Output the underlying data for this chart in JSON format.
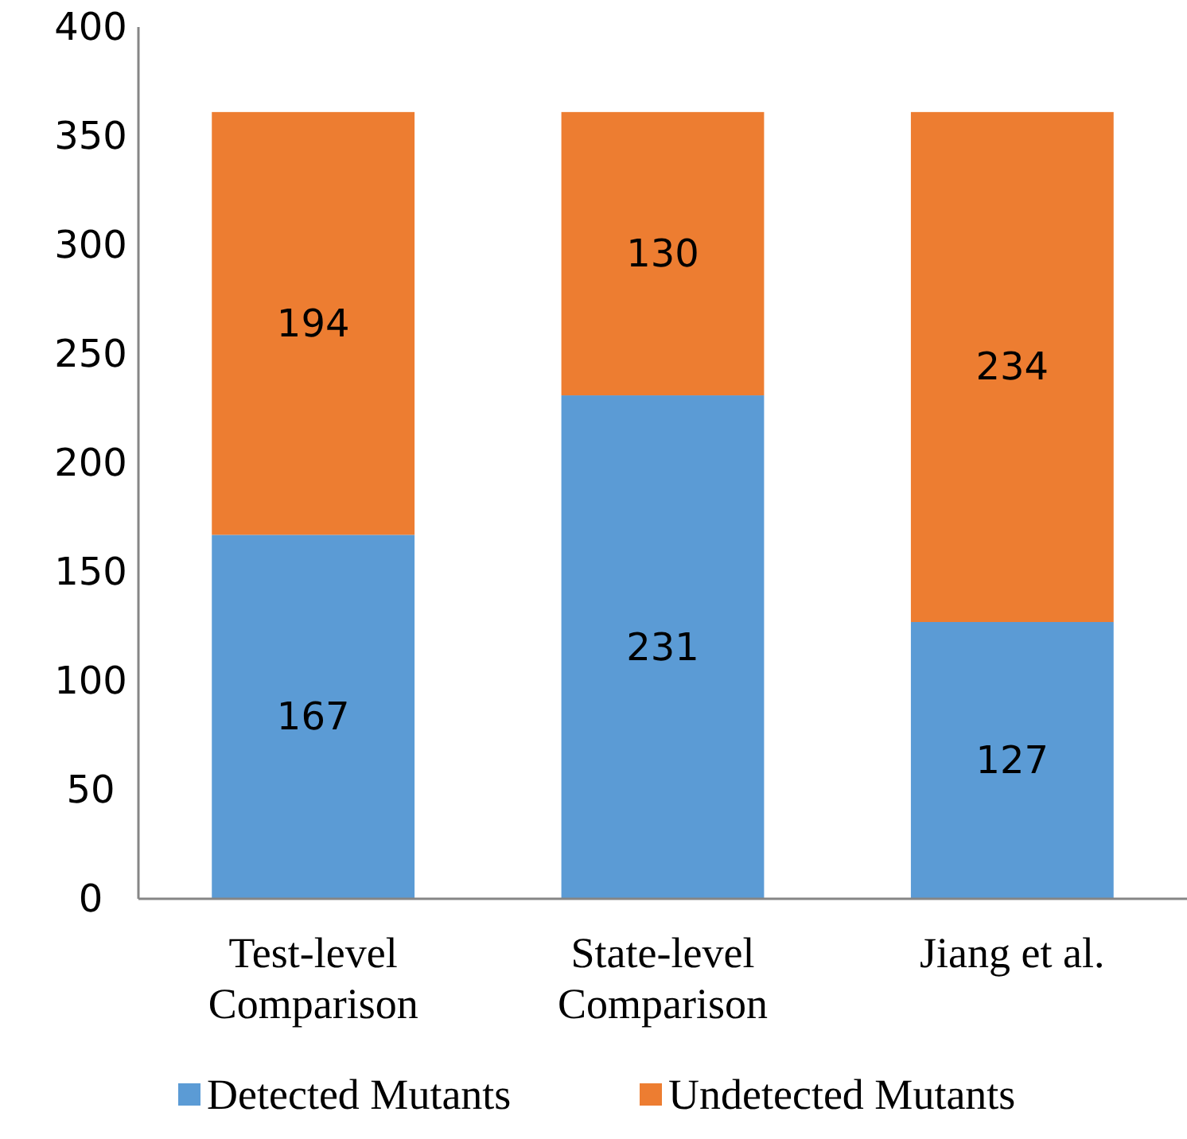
{
  "chart_data": {
    "type": "bar",
    "stacked": true,
    "categories": [
      "Test-level Comparison",
      "State-level Comparison",
      "Jiang et al."
    ],
    "series": [
      {
        "name": "Detected Mutants",
        "color": "#5b9bd5",
        "values": [
          167,
          231,
          127
        ]
      },
      {
        "name": "Undetected Mutants",
        "color": "#ed7d31",
        "values": [
          194,
          130,
          234
        ]
      }
    ],
    "ylim": [
      0,
      400
    ],
    "yticks": [
      0,
      50,
      100,
      150,
      200,
      250,
      300,
      350,
      400
    ],
    "data_labels": true,
    "grid": false,
    "legend": "bottom"
  }
}
